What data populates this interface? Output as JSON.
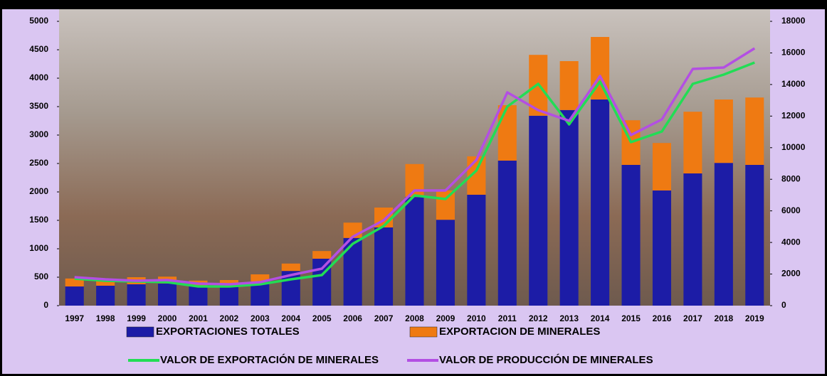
{
  "chart_data": {
    "type": "combo",
    "categories": [
      "1997",
      "1998",
      "1999",
      "2000",
      "2001",
      "2002",
      "2003",
      "2004",
      "2005",
      "2006",
      "2007",
      "2008",
      "2009",
      "2010",
      "2011",
      "2012",
      "2013",
      "2014",
      "2015",
      "2016",
      "2017",
      "2018",
      "2019"
    ],
    "series": [
      {
        "name": "EXPORTACIONES TOTALES",
        "type": "bar",
        "color": "#1c1ca6",
        "values": [
          337,
          350,
          375,
          390,
          340,
          350,
          425,
          610,
          825,
          1190,
          1375,
          1910,
          1510,
          1950,
          2550,
          3340,
          3440,
          3625,
          2475,
          2025,
          2325,
          2510,
          2475
        ]
      },
      {
        "name": "EXPORTACION DE MINERALES",
        "type": "bar",
        "color": "#ef7a12",
        "values": [
          140,
          125,
          125,
          120,
          100,
          100,
          125,
          130,
          135,
          270,
          350,
          580,
          515,
          675,
          975,
          1070,
          860,
          1100,
          785,
          835,
          1085,
          1115,
          1185
        ]
      },
      {
        "name": "VALOR DE EXPORTACIÓN DE MINERALES",
        "type": "line",
        "axis": "y2",
        "color": "#22dd55",
        "values": [
          1710,
          1575,
          1530,
          1485,
          1215,
          1215,
          1350,
          1665,
          1935,
          3915,
          5040,
          6975,
          6750,
          8550,
          12600,
          14040,
          11475,
          14175,
          10350,
          11025,
          14040,
          14625,
          15390
        ]
      },
      {
        "name": "VALOR DE PRODUCCIÓN DE MINERALES",
        "type": "line",
        "axis": "y2",
        "color": "#b34fe3",
        "values": [
          1800,
          1665,
          1575,
          1620,
          1395,
          1350,
          1485,
          1935,
          2340,
          4365,
          5400,
          7290,
          7290,
          9225,
          13500,
          12375,
          11700,
          14535,
          10800,
          11790,
          14985,
          15075,
          16290
        ]
      }
    ],
    "stacked": true,
    "ylim": [
      0,
      5000
    ],
    "yticks": [
      0,
      500,
      1000,
      1500,
      2000,
      2500,
      3000,
      3500,
      4000,
      4500,
      5000
    ],
    "y2lim": [
      0,
      18000
    ],
    "y2ticks": [
      0,
      2000,
      4000,
      6000,
      8000,
      10000,
      12000,
      14000,
      16000,
      18000
    ]
  }
}
